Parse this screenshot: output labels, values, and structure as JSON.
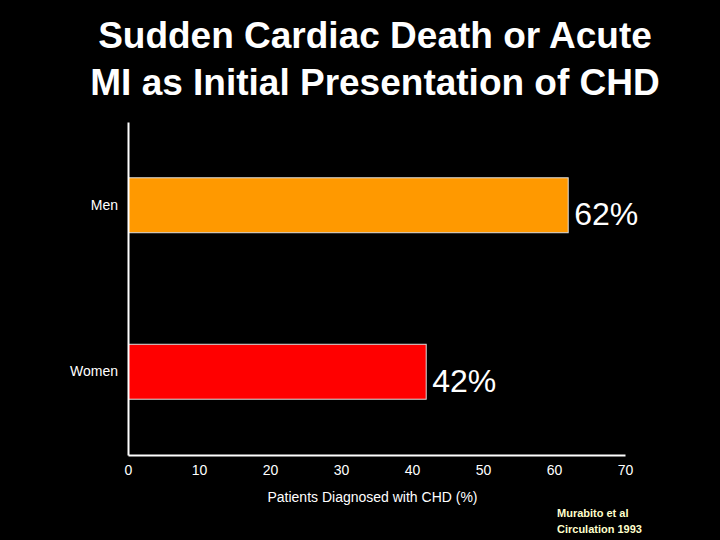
{
  "chart_data": {
    "type": "bar",
    "orientation": "horizontal",
    "title": "Sudden Cardiac Death or Acute\nMI as Initial Presentation of CHD",
    "x_label": "Patients Diagnosed with CHD (%)",
    "annotations": [
      "Murabito et al\nCirculation 1993"
    ],
    "categories": [
      "Men",
      "Women"
    ],
    "values": [
      62,
      42
    ],
    "value_labels": [
      "62%",
      "42%"
    ],
    "colors": [
      "#ff9900",
      "#ff0000"
    ],
    "data_labels": true,
    "xlim": [
      0,
      70
    ],
    "xticks": [
      0,
      10,
      20,
      30,
      40,
      50,
      60,
      70
    ],
    "grid": false
  }
}
